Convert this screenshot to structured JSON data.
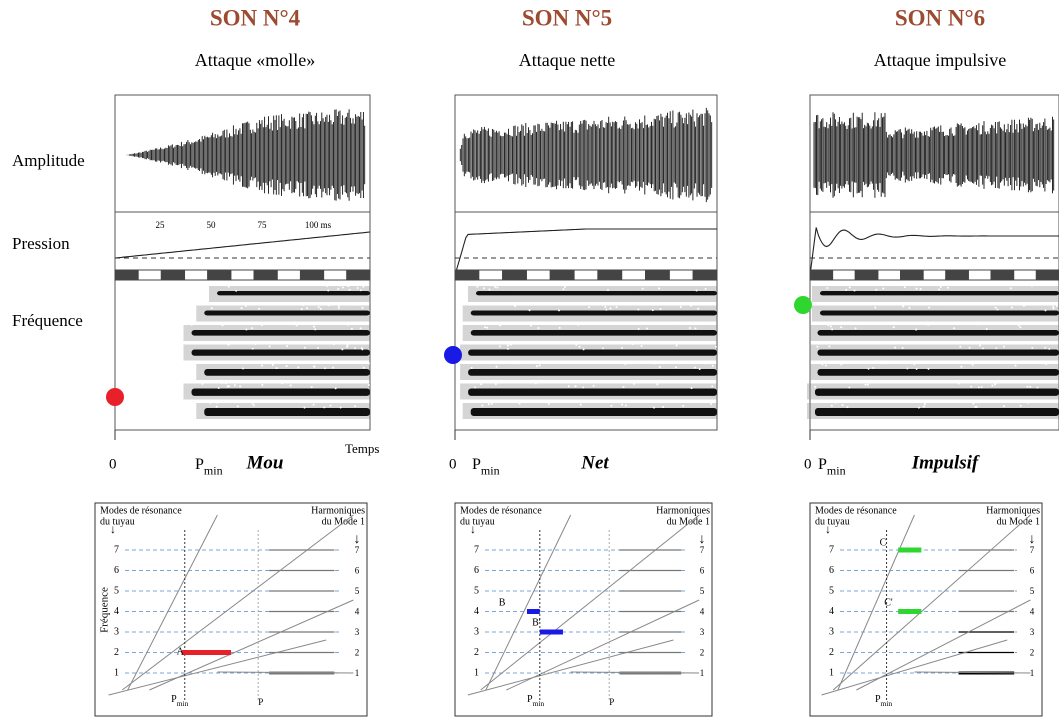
{
  "row_labels": [
    "Amplitude",
    "Pression",
    "Fréquence"
  ],
  "panels": [
    {
      "title": "SON N°4",
      "subtitle": "Attaque «molle»",
      "time_ticks": [
        "25",
        "50",
        "75",
        "100 ms"
      ],
      "time_label": "Temps",
      "origin": "0",
      "pmin": {
        "base": "P",
        "sub": "min"
      },
      "name": "Mou",
      "diagram": {
        "left_title": [
          "Modes de résonance",
          "du tuyau"
        ],
        "right_title": [
          "Harmoniques",
          "du Mode 1"
        ],
        "y_label": "Fréquence",
        "left_ticks": [
          "1",
          "2",
          "3",
          "4",
          "5",
          "6",
          "7"
        ],
        "right_ticks": [
          "1",
          "2",
          "3",
          "4",
          "5",
          "6",
          "7"
        ],
        "pmin": {
          "base": "P",
          "sub": "min"
        },
        "p_label": "P",
        "points": [
          "A"
        ]
      }
    },
    {
      "title": "SON N°5",
      "subtitle": "Attaque nette",
      "origin": "0",
      "pmin": {
        "base": "P",
        "sub": "min"
      },
      "name": "Net",
      "diagram": {
        "left_title": [
          "Modes de résonance",
          "du tuyau"
        ],
        "right_title": [
          "Harmoniques",
          "du Mode 1"
        ],
        "left_ticks": [
          "1",
          "2",
          "3",
          "4",
          "5",
          "6",
          "7"
        ],
        "right_ticks": [
          "1",
          "2",
          "3",
          "4",
          "5",
          "6",
          "7"
        ],
        "pmin": {
          "base": "P",
          "sub": "min"
        },
        "p_label": "P",
        "points": [
          "B",
          "B'"
        ]
      }
    },
    {
      "title": "SON N°6",
      "subtitle": "Attaque impulsive",
      "origin": "0",
      "pmin": {
        "base": "P",
        "sub": "min"
      },
      "name": "Impulsif",
      "diagram": {
        "left_title": [
          "Modes de résonance",
          "du tuyau"
        ],
        "right_title": [
          "Harmoniques",
          "du Mode 1"
        ],
        "left_ticks": [
          "1",
          "2",
          "3",
          "4",
          "5",
          "6",
          "7"
        ],
        "right_ticks": [
          "1",
          "2",
          "3",
          "4",
          "5",
          "6",
          "7"
        ],
        "pmin": {
          "base": "P",
          "sub": "min"
        },
        "points": [
          "C",
          "C'"
        ]
      }
    }
  ]
}
